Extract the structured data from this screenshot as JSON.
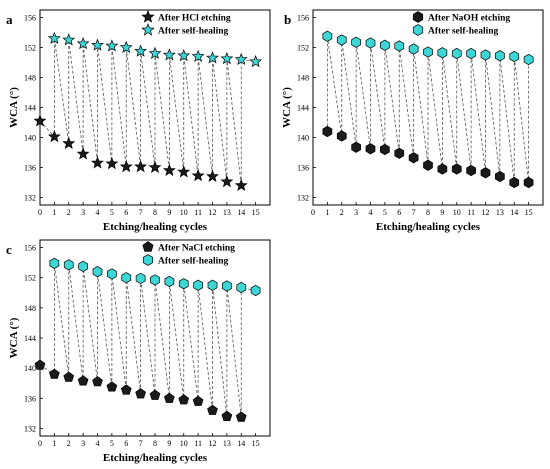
{
  "chart_data": [
    {
      "type": "line",
      "panel": "a",
      "xlabel": "Etching/healing cycles",
      "ylabel": "WCA (°)",
      "xlim": [
        0,
        16
      ],
      "ylim": [
        131,
        157
      ],
      "xticks": [
        0,
        1,
        2,
        3,
        4,
        5,
        6,
        7,
        8,
        9,
        10,
        11,
        12,
        13,
        14,
        15
      ],
      "yticks": [
        132,
        136,
        140,
        144,
        148,
        152,
        156
      ],
      "legend_position": "top-right",
      "connector": "dashed zigzag between consecutive points",
      "series": [
        {
          "name": "After HCl etching",
          "marker": "star",
          "color": "#1a1a1a",
          "x": [
            0,
            1,
            2,
            3,
            4,
            5,
            6,
            7,
            8,
            9,
            10,
            11,
            12,
            13,
            14
          ],
          "y": [
            142.2,
            140.1,
            139.2,
            137.8,
            136.6,
            136.5,
            136.1,
            136.1,
            136.0,
            135.6,
            135.4,
            134.9,
            134.8,
            134.1,
            133.6
          ]
        },
        {
          "name": "After self-healing",
          "marker": "star",
          "color": "#3cd6d6",
          "x": [
            1,
            2,
            3,
            4,
            5,
            6,
            7,
            8,
            9,
            10,
            11,
            12,
            13,
            14,
            15
          ],
          "y": [
            153.2,
            153.0,
            152.5,
            152.3,
            152.2,
            152.0,
            151.5,
            151.2,
            151.0,
            150.9,
            150.8,
            150.6,
            150.5,
            150.4,
            150.1
          ]
        }
      ]
    },
    {
      "type": "line",
      "panel": "b",
      "xlabel": "Etching/healing cycles",
      "ylabel": "WCA (°)",
      "xlim": [
        0,
        16
      ],
      "ylim": [
        131,
        157
      ],
      "xticks": [
        0,
        1,
        2,
        3,
        4,
        5,
        6,
        7,
        8,
        9,
        10,
        11,
        12,
        13,
        14,
        15
      ],
      "yticks": [
        132,
        136,
        140,
        144,
        148,
        152,
        156
      ],
      "legend_position": "top-right",
      "connector": "dashed zigzag between consecutive points",
      "series": [
        {
          "name": "After NaOH etching",
          "marker": "hexagon",
          "color": "#1a1a1a",
          "x": [
            1,
            2,
            3,
            4,
            5,
            6,
            7,
            8,
            9,
            10,
            11,
            12,
            13,
            14,
            15
          ],
          "y": [
            140.8,
            140.2,
            138.7,
            138.5,
            138.4,
            137.9,
            137.3,
            136.3,
            135.8,
            135.8,
            135.6,
            135.3,
            134.8,
            134.0,
            134.0
          ]
        },
        {
          "name": "After self-healing",
          "marker": "hexagon",
          "color": "#3cd6d6",
          "x": [
            1,
            2,
            3,
            4,
            5,
            6,
            7,
            8,
            9,
            10,
            11,
            12,
            13,
            14,
            15
          ],
          "y": [
            153.5,
            153.0,
            152.7,
            152.6,
            152.3,
            152.2,
            151.8,
            151.4,
            151.3,
            151.2,
            151.2,
            151.0,
            150.9,
            150.8,
            150.4
          ]
        }
      ]
    },
    {
      "type": "line",
      "panel": "c",
      "xlabel": "Etching/healing cycles",
      "ylabel": "WCA (°)",
      "xlim": [
        0,
        16
      ],
      "ylim": [
        131,
        157
      ],
      "xticks": [
        0,
        1,
        2,
        3,
        4,
        5,
        6,
        7,
        8,
        9,
        10,
        11,
        12,
        13,
        14,
        15
      ],
      "yticks": [
        132,
        136,
        140,
        144,
        148,
        152,
        156
      ],
      "legend_position": "top-right",
      "connector": "dashed zigzag between consecutive points",
      "series": [
        {
          "name": "After NaCl etching",
          "marker": "pentagon",
          "color": "#1a1a1a",
          "x": [
            0,
            1,
            2,
            3,
            4,
            5,
            6,
            7,
            8,
            9,
            10,
            11,
            12,
            13,
            14
          ],
          "y": [
            140.4,
            139.2,
            138.8,
            138.3,
            138.2,
            137.5,
            137.1,
            136.6,
            136.4,
            136.0,
            135.8,
            135.6,
            134.4,
            133.6,
            133.5
          ]
        },
        {
          "name": "After self-healing",
          "marker": "hexagon",
          "color": "#3cd6d6",
          "x": [
            1,
            2,
            3,
            4,
            5,
            6,
            7,
            8,
            9,
            10,
            11,
            12,
            13,
            14,
            15
          ],
          "y": [
            153.9,
            153.7,
            153.5,
            152.8,
            152.5,
            152.0,
            151.9,
            151.7,
            151.5,
            151.2,
            151.0,
            151.0,
            150.9,
            150.7,
            150.3
          ]
        }
      ]
    }
  ]
}
